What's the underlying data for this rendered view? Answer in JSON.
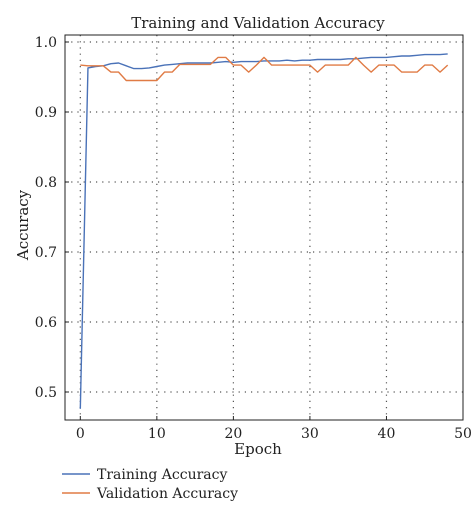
{
  "chart_data": {
    "type": "line",
    "title": "Training and Validation Accuracy",
    "xlabel": "Epoch",
    "ylabel": "Accuracy",
    "xlim": [
      -2,
      50
    ],
    "ylim": [
      0.46,
      1.01
    ],
    "xticks": [
      0,
      10,
      20,
      30,
      40,
      50
    ],
    "yticks": [
      0.5,
      0.6,
      0.7,
      0.8,
      0.9,
      1.0
    ],
    "grid": true,
    "legend_position": "bottom-left",
    "x": [
      0,
      1,
      2,
      3,
      4,
      5,
      6,
      7,
      8,
      9,
      10,
      11,
      12,
      13,
      14,
      15,
      16,
      17,
      18,
      19,
      20,
      21,
      22,
      23,
      24,
      25,
      26,
      27,
      28,
      29,
      30,
      31,
      32,
      33,
      34,
      35,
      36,
      37,
      38,
      39,
      40,
      41,
      42,
      43,
      44,
      45,
      46,
      47,
      48
    ],
    "series": [
      {
        "name": "Training Accuracy",
        "color": "#4a72b8",
        "values": [
          0.476,
          0.963,
          0.965,
          0.966,
          0.969,
          0.97,
          0.966,
          0.962,
          0.962,
          0.963,
          0.965,
          0.967,
          0.968,
          0.969,
          0.97,
          0.97,
          0.97,
          0.97,
          0.971,
          0.972,
          0.971,
          0.972,
          0.972,
          0.972,
          0.973,
          0.973,
          0.973,
          0.974,
          0.973,
          0.974,
          0.974,
          0.975,
          0.975,
          0.975,
          0.975,
          0.976,
          0.976,
          0.977,
          0.978,
          0.978,
          0.978,
          0.979,
          0.98,
          0.98,
          0.981,
          0.982,
          0.982,
          0.982,
          0.983
        ]
      },
      {
        "name": "Validation Accuracy",
        "color": "#e07b45",
        "values": [
          0.967,
          0.966,
          0.966,
          0.966,
          0.957,
          0.957,
          0.945,
          0.945,
          0.945,
          0.945,
          0.945,
          0.957,
          0.957,
          0.968,
          0.968,
          0.968,
          0.968,
          0.968,
          0.978,
          0.978,
          0.967,
          0.967,
          0.957,
          0.967,
          0.978,
          0.967,
          0.967,
          0.967,
          0.967,
          0.967,
          0.967,
          0.957,
          0.967,
          0.967,
          0.967,
          0.967,
          0.978,
          0.967,
          0.957,
          0.967,
          0.967,
          0.967,
          0.957,
          0.957,
          0.957,
          0.967,
          0.967,
          0.957,
          0.967
        ]
      }
    ]
  }
}
